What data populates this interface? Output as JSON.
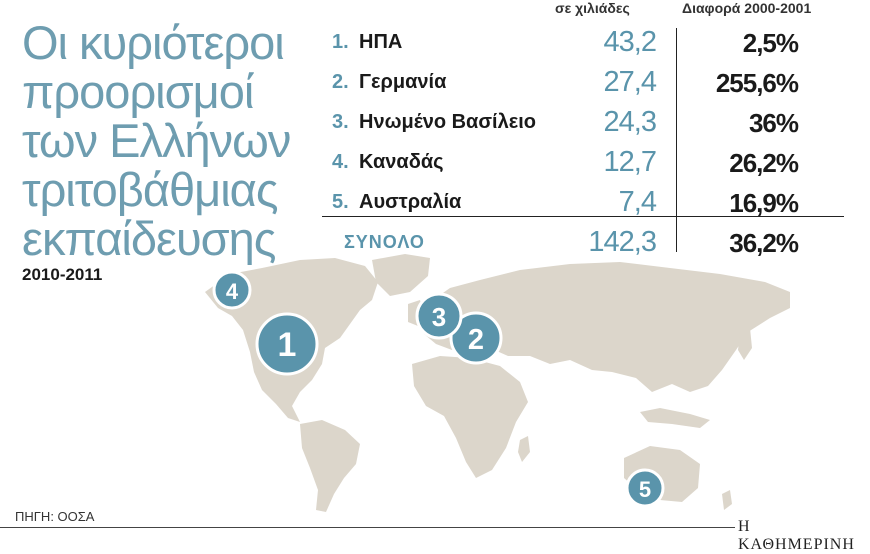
{
  "title": "Οι κυριότεροι προορισμοί των Ελλήνων τριτοβάθμιας εκπαίδευσης",
  "period": "2010-2011",
  "columns": {
    "value": "σε χιλιάδες",
    "diff": "Διαφορά 2000-2001"
  },
  "total": {
    "label": "ΣΥΝΟΛΟ",
    "value": "142,3",
    "diff": "36,2%"
  },
  "source": "ΠΗΓΗ: ΟΟΣΑ",
  "brand": "Η ΚΑΘΗΜΕΡΙΝΗ",
  "colors": {
    "accent": "#5a94ab",
    "title": "#6e9db0",
    "land": "#dcd6cb",
    "marker": "#5a94ab"
  },
  "chart_data": {
    "type": "table",
    "title": "Οι κυριότεροι προορισμοί των Ελλήνων τριτοβάθμιας εκπαίδευσης",
    "subtitle": "2010-2011",
    "columns": [
      "σε χιλιάδες",
      "Διαφορά 2000-2001"
    ],
    "rows": [
      {
        "rank": "1.",
        "country": "ΗΠΑ",
        "value": "43,2",
        "diff": "2,5%"
      },
      {
        "rank": "2.",
        "country": "Γερμανία",
        "value": "27,4",
        "diff": "255,6%"
      },
      {
        "rank": "3.",
        "country": "Ηνωμένο Βασίλειο",
        "value": "24,3",
        "diff": "36%"
      },
      {
        "rank": "4.",
        "country": "Καναδάς",
        "value": "12,7",
        "diff": "26,2%"
      },
      {
        "rank": "5.",
        "country": "Αυστραλία",
        "value": "7,4",
        "diff": "16,9%"
      }
    ],
    "markers": [
      {
        "label": "1",
        "country": "ΗΠΑ"
      },
      {
        "label": "2",
        "country": "Γερμανία"
      },
      {
        "label": "3",
        "country": "Ηνωμένο Βασίλειο"
      },
      {
        "label": "4",
        "country": "Καναδάς"
      },
      {
        "label": "5",
        "country": "Αυστραλία"
      }
    ]
  }
}
